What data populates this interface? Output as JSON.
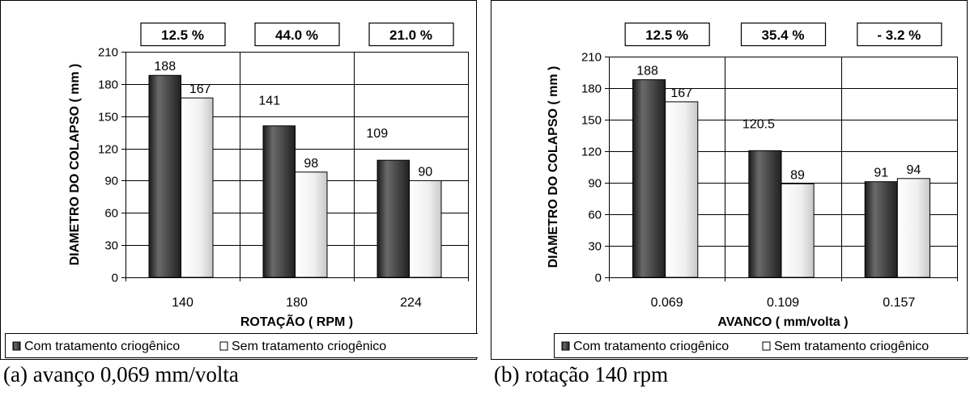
{
  "chart_data": [
    {
      "type": "bar",
      "ylabel": "DIAMETRO DO COLAPSO ( mm )",
      "xlabel": "ROTAÇÃO ( RPM )",
      "ylim": [
        0,
        210
      ],
      "yticks": [
        0,
        30,
        60,
        90,
        120,
        150,
        180,
        210
      ],
      "categories": [
        "140",
        "180",
        "224"
      ],
      "series": [
        {
          "name": "Com tratamento criogênico",
          "values": [
            188,
            141,
            109
          ],
          "color": "#3a3a3a"
        },
        {
          "name": "Sem tratamento criogênico",
          "values": [
            167,
            98,
            90
          ],
          "color": "#f2f2f2"
        }
      ],
      "data_labels": [
        [
          "188",
          "167"
        ],
        [
          "141",
          "98"
        ],
        [
          "109",
          "90"
        ]
      ],
      "percent_boxes": [
        "12.5 %",
        "44.0 %",
        "21.0 %"
      ],
      "grid": true,
      "legend_position": "bottom",
      "caption": "(a) avanço 0,069 mm/volta"
    },
    {
      "type": "bar",
      "ylabel": "DIAMETRO DO COLAPSO ( mm )",
      "xlabel": "AVANCO ( mm/volta )",
      "ylim": [
        0,
        210
      ],
      "yticks": [
        0,
        30,
        60,
        90,
        120,
        150,
        180,
        210
      ],
      "categories": [
        "0.069",
        "0.109",
        "0.157"
      ],
      "series": [
        {
          "name": "Com tratamento criogênico",
          "values": [
            188,
            120.5,
            91
          ],
          "color": "#3a3a3a"
        },
        {
          "name": "Sem tratamento criogênico",
          "values": [
            167,
            89,
            94
          ],
          "color": "#f2f2f2"
        }
      ],
      "data_labels": [
        [
          "188",
          "167"
        ],
        [
          "120.5",
          "89"
        ],
        [
          "91",
          "94"
        ]
      ],
      "percent_boxes": [
        "12.5 %",
        "35.4 %",
        "- 3.2 %"
      ],
      "grid": true,
      "legend_position": "bottom",
      "caption": "(b) rotação 140 rpm"
    }
  ]
}
